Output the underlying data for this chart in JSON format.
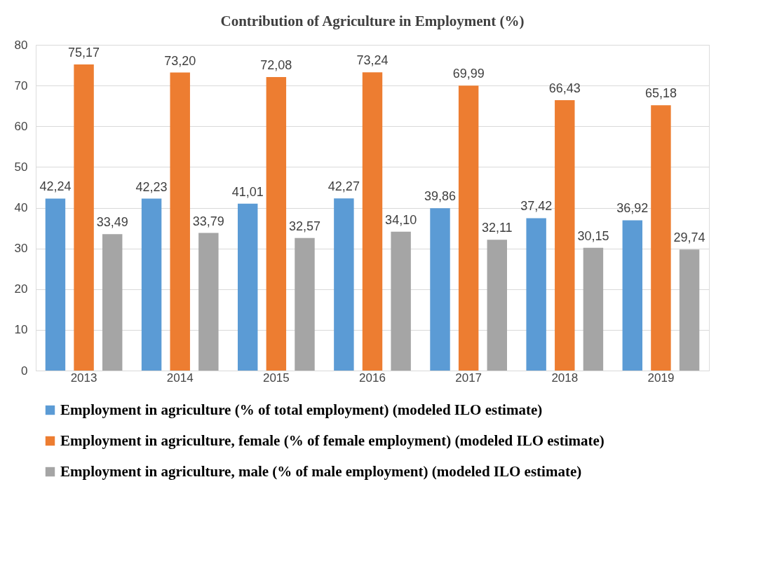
{
  "chart_data": {
    "type": "bar",
    "title": "Contribution of Agriculture in Employment (%)",
    "categories": [
      "2013",
      "2014",
      "2015",
      "2016",
      "2017",
      "2018",
      "2019"
    ],
    "series": [
      {
        "name": "Employment in agriculture (% of total employment) (modeled ILO estimate)",
        "color": "#5b9bd5",
        "values": [
          42.24,
          42.23,
          41.01,
          42.27,
          39.86,
          37.42,
          36.92
        ],
        "value_labels": [
          "42,24",
          "42,23",
          "41,01",
          "42,27",
          "39,86",
          "37,42",
          "36,92"
        ]
      },
      {
        "name": "Employment in agriculture, female (% of female employment) (modeled ILO estimate)",
        "color": "#ed7d31",
        "values": [
          75.17,
          73.2,
          72.08,
          73.24,
          69.99,
          66.43,
          65.18
        ],
        "value_labels": [
          "75,17",
          "73,20",
          "72,08",
          "73,24",
          "69,99",
          "66,43",
          "65,18"
        ]
      },
      {
        "name": "Employment in agriculture, male (% of male employment) (modeled ILO estimate)",
        "color": "#a5a5a5",
        "values": [
          33.49,
          33.79,
          32.57,
          34.1,
          32.11,
          30.15,
          29.74
        ],
        "value_labels": [
          "33,49",
          "33,79",
          "32,57",
          "34,10",
          "32,11",
          "30,15",
          "29,74"
        ]
      }
    ],
    "ylim": [
      0,
      80
    ],
    "yticks": [
      0,
      10,
      20,
      30,
      40,
      50,
      60,
      70,
      80
    ],
    "grid": "y",
    "legend": "bottom"
  }
}
